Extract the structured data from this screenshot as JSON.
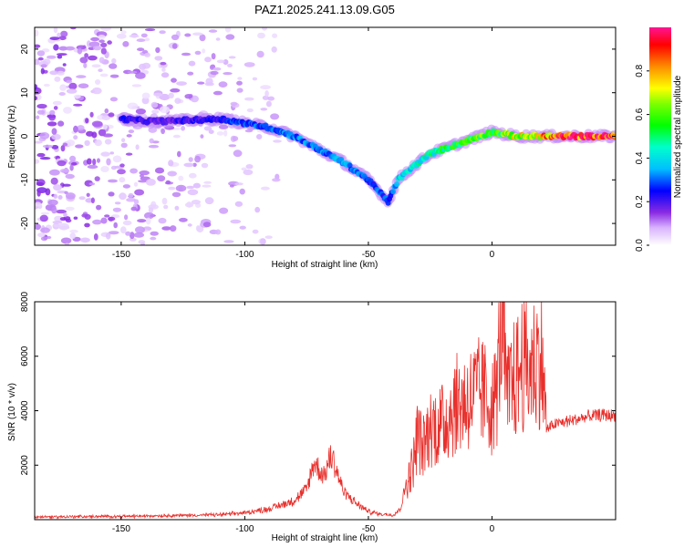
{
  "chart_data": [
    {
      "type": "heatmap",
      "title": "PAZ1.2025.241.13.09.G05",
      "xlabel": "Height of straight line (km)",
      "ylabel": "Frequency (Hz)",
      "xlim": [
        -185,
        50
      ],
      "ylim": [
        -25,
        25
      ],
      "xticks": [
        -150,
        -100,
        -50,
        0
      ],
      "xtick_labels": [
        "-150",
        "-100",
        "-50",
        "0"
      ],
      "yticks": [
        -20,
        -10,
        0,
        10,
        20
      ],
      "ytick_labels": [
        "-20",
        "-10",
        "0",
        "10",
        "20"
      ],
      "colorbar": {
        "label": "Normalized spectral amplitude",
        "range": [
          0,
          1
        ],
        "ticks": [
          0.0,
          0.2,
          0.4,
          0.6,
          0.8
        ],
        "tick_labels": [
          "0.0",
          "0.2",
          "0.4",
          "0.6",
          "0.8"
        ]
      },
      "ridge": {
        "x": [
          -150,
          -140,
          -130,
          -110,
          -100,
          -90,
          -80,
          -70,
          -60,
          -50,
          -42,
          -38,
          -32,
          -25,
          -15,
          -5,
          0,
          10,
          20,
          30,
          40,
          50
        ],
        "y": [
          4,
          3.5,
          3.5,
          4,
          3,
          2,
          0,
          -3,
          -6,
          -10,
          -15,
          -10,
          -7,
          -4,
          -2,
          0,
          1,
          0,
          0,
          0,
          0,
          0
        ],
        "amplitude": [
          0.25,
          0.2,
          0.2,
          0.25,
          0.3,
          0.3,
          0.32,
          0.33,
          0.34,
          0.3,
          0.28,
          0.4,
          0.45,
          0.5,
          0.55,
          0.6,
          0.55,
          0.7,
          0.8,
          0.9,
          0.95,
          1.0
        ]
      },
      "noise_region_x": [
        -185,
        -85
      ]
    },
    {
      "type": "line",
      "xlabel": "Height of straight line (km)",
      "ylabel": "SNR (10 * v/v)",
      "xlim": [
        -185,
        50
      ],
      "ylim": [
        0,
        8000
      ],
      "xticks": [
        -150,
        -100,
        -50,
        0
      ],
      "xtick_labels": [
        "-150",
        "-100",
        "-50",
        "0"
      ],
      "yticks": [
        2000,
        4000,
        6000,
        8000
      ],
      "ytick_labels": [
        "2000",
        "4000",
        "6000",
        "8000"
      ],
      "color": "#e8302c",
      "series": [
        {
          "name": "SNR",
          "x": [
            -185,
            -150,
            -110,
            -100,
            -90,
            -80,
            -75,
            -72,
            -68,
            -65,
            -60,
            -55,
            -50,
            -45,
            -40,
            -37,
            -35,
            -32,
            -30,
            -28,
            -25,
            -20,
            -15,
            -10,
            -5,
            -2,
            0,
            2,
            4,
            6,
            8,
            10,
            12,
            15,
            18,
            20,
            21,
            22,
            25,
            30,
            35,
            40,
            45,
            50
          ],
          "y": [
            100,
            120,
            180,
            250,
            400,
            700,
            1100,
            2100,
            1600,
            2400,
            1000,
            600,
            300,
            200,
            180,
            400,
            1200,
            2000,
            3200,
            2600,
            3400,
            3500,
            4200,
            4400,
            4700,
            4500,
            4100,
            4700,
            7800,
            4300,
            5000,
            5200,
            5800,
            5500,
            5900,
            6000,
            4800,
            3300,
            3500,
            3600,
            3700,
            3800,
            3850,
            3800
          ]
        }
      ]
    }
  ]
}
